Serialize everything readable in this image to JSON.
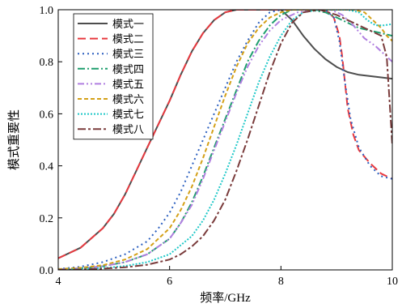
{
  "chart_data": {
    "type": "line",
    "title": "",
    "xlabel": "频率/GHz",
    "ylabel": "模式重要性",
    "xlim": [
      4,
      10
    ],
    "ylim": [
      0,
      1
    ],
    "x_ticks": [
      4,
      6,
      8,
      10
    ],
    "y_ticks": [
      0.0,
      0.2,
      0.4,
      0.6,
      0.8,
      1.0
    ],
    "x_tick_labels": [
      "4",
      "6",
      "8",
      "10"
    ],
    "y_tick_labels": [
      "0.0",
      "0.2",
      "0.4",
      "0.6",
      "0.8",
      "1.0"
    ],
    "grid": false,
    "legend": "top-left",
    "series": [
      {
        "name": "模式一",
        "color": "#4d4d4d",
        "dash": "solid",
        "x": [
          4,
          4.4,
          4.8,
          5.0,
          5.2,
          5.4,
          5.6,
          5.8,
          6.0,
          6.2,
          6.4,
          6.6,
          6.8,
          7.0,
          7.2,
          7.4,
          7.6,
          7.8,
          8.0,
          8.2,
          8.4,
          8.6,
          8.8,
          9.0,
          9.2,
          9.4,
          9.6,
          9.8,
          10.0
        ],
        "y": [
          0.045,
          0.085,
          0.16,
          0.215,
          0.29,
          0.38,
          0.47,
          0.56,
          0.65,
          0.75,
          0.84,
          0.91,
          0.96,
          0.99,
          1.0,
          1.0,
          1.0,
          1.0,
          1.0,
          0.96,
          0.9,
          0.85,
          0.81,
          0.78,
          0.76,
          0.75,
          0.745,
          0.74,
          0.735
        ]
      },
      {
        "name": "模式二",
        "color": "#e8393f",
        "dash": "long-dash",
        "x": [
          4,
          4.4,
          4.8,
          5.0,
          5.2,
          5.4,
          5.6,
          5.8,
          6.0,
          6.2,
          6.4,
          6.6,
          6.8,
          7.0,
          7.2,
          7.4,
          7.6,
          7.8,
          8.0,
          8.3,
          8.6,
          8.8,
          8.95,
          9.05,
          9.1,
          9.15,
          9.2,
          9.3,
          9.4,
          9.6,
          9.8,
          10.0
        ],
        "y": [
          0.045,
          0.085,
          0.16,
          0.215,
          0.29,
          0.38,
          0.47,
          0.56,
          0.65,
          0.75,
          0.84,
          0.91,
          0.96,
          0.99,
          1.0,
          1.0,
          1.0,
          1.0,
          1.0,
          1.0,
          1.0,
          1.0,
          0.97,
          0.9,
          0.82,
          0.72,
          0.62,
          0.52,
          0.46,
          0.41,
          0.37,
          0.35
        ]
      },
      {
        "name": "模式三",
        "color": "#2b5fbf",
        "dash": "dotted",
        "x": [
          4,
          4.4,
          4.8,
          5.2,
          5.6,
          5.8,
          6.0,
          6.2,
          6.4,
          6.6,
          6.8,
          7.0,
          7.2,
          7.4,
          7.6,
          7.8,
          8.0,
          8.3,
          8.6,
          8.8,
          8.95,
          9.05,
          9.15,
          9.25,
          9.4,
          9.6,
          9.8,
          10.0
        ],
        "y": [
          0.003,
          0.012,
          0.03,
          0.06,
          0.11,
          0.16,
          0.22,
          0.3,
          0.4,
          0.5,
          0.6,
          0.7,
          0.8,
          0.88,
          0.95,
          0.99,
          1.0,
          1.0,
          1.0,
          1.0,
          0.97,
          0.88,
          0.72,
          0.58,
          0.47,
          0.4,
          0.36,
          0.35
        ]
      },
      {
        "name": "模式四",
        "color": "#1f9e6e",
        "dash": "dash-dot",
        "x": [
          4,
          4.4,
          4.8,
          5.2,
          5.6,
          6.0,
          6.2,
          6.4,
          6.6,
          6.8,
          7.0,
          7.2,
          7.4,
          7.6,
          7.8,
          8.0,
          8.2,
          8.5,
          8.8,
          9.0,
          9.2,
          9.4,
          9.6,
          9.8,
          10.0
        ],
        "y": [
          0.002,
          0.006,
          0.014,
          0.03,
          0.06,
          0.12,
          0.18,
          0.26,
          0.36,
          0.47,
          0.58,
          0.69,
          0.8,
          0.88,
          0.94,
          0.98,
          1.0,
          1.0,
          0.99,
          0.97,
          0.95,
          0.93,
          0.92,
          0.91,
          0.9
        ]
      },
      {
        "name": "模式五",
        "color": "#b07fe0",
        "dash": "dash-dot-dot",
        "x": [
          4,
          4.4,
          4.8,
          5.2,
          5.6,
          6.0,
          6.2,
          6.4,
          6.6,
          6.8,
          7.0,
          7.2,
          7.4,
          7.6,
          7.8,
          8.0,
          8.3,
          8.6,
          8.9,
          9.1,
          9.3,
          9.5,
          9.7,
          9.85,
          10.0
        ],
        "y": [
          0.002,
          0.006,
          0.014,
          0.03,
          0.06,
          0.12,
          0.18,
          0.25,
          0.35,
          0.46,
          0.57,
          0.68,
          0.78,
          0.86,
          0.92,
          0.96,
          0.99,
          1.0,
          1.0,
          0.98,
          0.94,
          0.89,
          0.86,
          0.83,
          0.8
        ]
      },
      {
        "name": "模式六",
        "color": "#d4a017",
        "dash": "short-dash",
        "x": [
          4,
          4.4,
          4.8,
          5.2,
          5.6,
          6.0,
          6.2,
          6.4,
          6.6,
          6.8,
          7.0,
          7.2,
          7.4,
          7.6,
          7.8,
          8.0,
          8.2,
          8.4,
          8.7,
          9.0,
          9.3,
          9.5,
          9.65,
          9.8,
          9.9,
          10.0
        ],
        "y": [
          0.003,
          0.008,
          0.018,
          0.04,
          0.08,
          0.16,
          0.23,
          0.32,
          0.43,
          0.55,
          0.67,
          0.78,
          0.87,
          0.93,
          0.97,
          0.99,
          1.0,
          1.0,
          1.0,
          1.0,
          1.0,
          0.99,
          0.96,
          0.93,
          0.9,
          0.88
        ]
      },
      {
        "name": "模式七",
        "color": "#1fc8c8",
        "dash": "dense-dotted",
        "x": [
          4,
          4.4,
          4.8,
          5.2,
          5.6,
          6.0,
          6.4,
          6.6,
          6.8,
          7.0,
          7.2,
          7.4,
          7.6,
          7.8,
          8.0,
          8.2,
          8.4,
          8.7,
          9.0,
          9.2,
          9.4,
          9.55,
          9.7,
          9.85,
          10.0
        ],
        "y": [
          0.001,
          0.003,
          0.007,
          0.015,
          0.03,
          0.06,
          0.13,
          0.19,
          0.27,
          0.37,
          0.48,
          0.6,
          0.72,
          0.82,
          0.9,
          0.96,
          0.99,
          1.0,
          1.0,
          1.0,
          0.99,
          0.96,
          0.94,
          0.94,
          0.945
        ]
      },
      {
        "name": "模式八",
        "color": "#7a3b3b",
        "dash": "dash-dot-heavy",
        "x": [
          4,
          4.4,
          4.8,
          5.2,
          5.6,
          6.0,
          6.2,
          6.4,
          6.6,
          6.8,
          7.0,
          7.2,
          7.4,
          7.6,
          7.8,
          8.0,
          8.2,
          8.4,
          8.7,
          9.0,
          9.2,
          9.4,
          9.6,
          9.8,
          9.9,
          9.95,
          10.0
        ],
        "y": [
          0.001,
          0.002,
          0.005,
          0.01,
          0.02,
          0.04,
          0.06,
          0.09,
          0.13,
          0.19,
          0.27,
          0.38,
          0.5,
          0.63,
          0.76,
          0.87,
          0.95,
          0.99,
          1.0,
          0.98,
          0.96,
          0.94,
          0.92,
          0.9,
          0.82,
          0.65,
          0.48
        ]
      }
    ]
  }
}
